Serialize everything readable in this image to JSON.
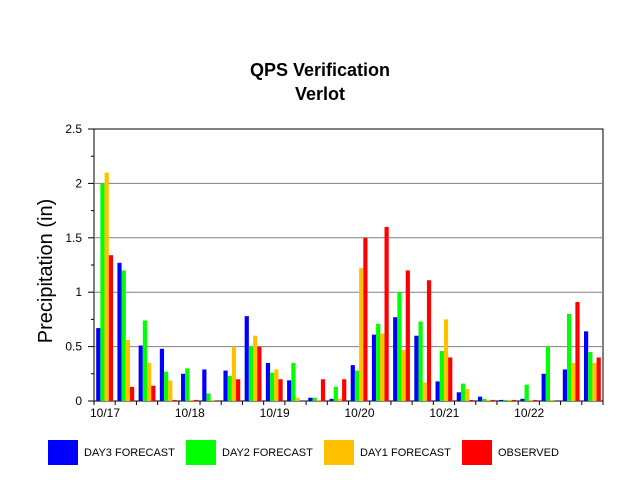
{
  "chart_data": {
    "type": "bar",
    "title": "QPS Verification",
    "subtitle": "Verlot",
    "xlabel": "",
    "ylabel": "Precipitation (in)",
    "ylim": [
      0,
      2.5
    ],
    "yticks": [
      "0",
      "0.5",
      "1",
      "1.5",
      "2",
      "2.5"
    ],
    "grid": true,
    "legend_position": "bottom",
    "date_labels": [
      "10/17",
      "10/18",
      "10/19",
      "10/20",
      "10/21",
      "10/22"
    ],
    "series": [
      {
        "name": "DAY3 FORECAST",
        "color": "#0000FF",
        "values": [
          0.67,
          1.27,
          0.51,
          0.48,
          0.25,
          0.29,
          0.28,
          0.78,
          0.35,
          0.19,
          0.03,
          0.02,
          0.33,
          0.61,
          0.77,
          0.6,
          0.18,
          0.08,
          0.04,
          0.01,
          0.02,
          0.25,
          0.29,
          0.64
        ]
      },
      {
        "name": "DAY2 FORECAST",
        "color": "#00FF00",
        "values": [
          2.0,
          1.2,
          0.74,
          0.27,
          0.3,
          0.07,
          0.23,
          0.5,
          0.26,
          0.35,
          0.03,
          0.13,
          0.28,
          0.71,
          1.0,
          0.73,
          0.46,
          0.16,
          0.02,
          0.01,
          0.15,
          0.5,
          0.8,
          0.45
        ]
      },
      {
        "name": "DAY1 FORECAST",
        "color": "#FFC000",
        "values": [
          2.1,
          0.56,
          0.35,
          0.19,
          0.01,
          0.01,
          0.5,
          0.6,
          0.29,
          0.03,
          0.01,
          0.02,
          1.22,
          0.62,
          0.47,
          0.17,
          0.75,
          0.11,
          0.01,
          0.01,
          0.01,
          0.01,
          0.35,
          0.35
        ]
      },
      {
        "name": "OBSERVED",
        "color": "#FF0000",
        "values": [
          1.34,
          0.13,
          0.14,
          0.01,
          0.01,
          0.0,
          0.2,
          0.5,
          0.2,
          0.0,
          0.2,
          0.2,
          1.5,
          1.6,
          1.2,
          1.11,
          0.4,
          0.01,
          0.01,
          0.01,
          0.01,
          0.0,
          0.91,
          0.4
        ]
      }
    ]
  }
}
